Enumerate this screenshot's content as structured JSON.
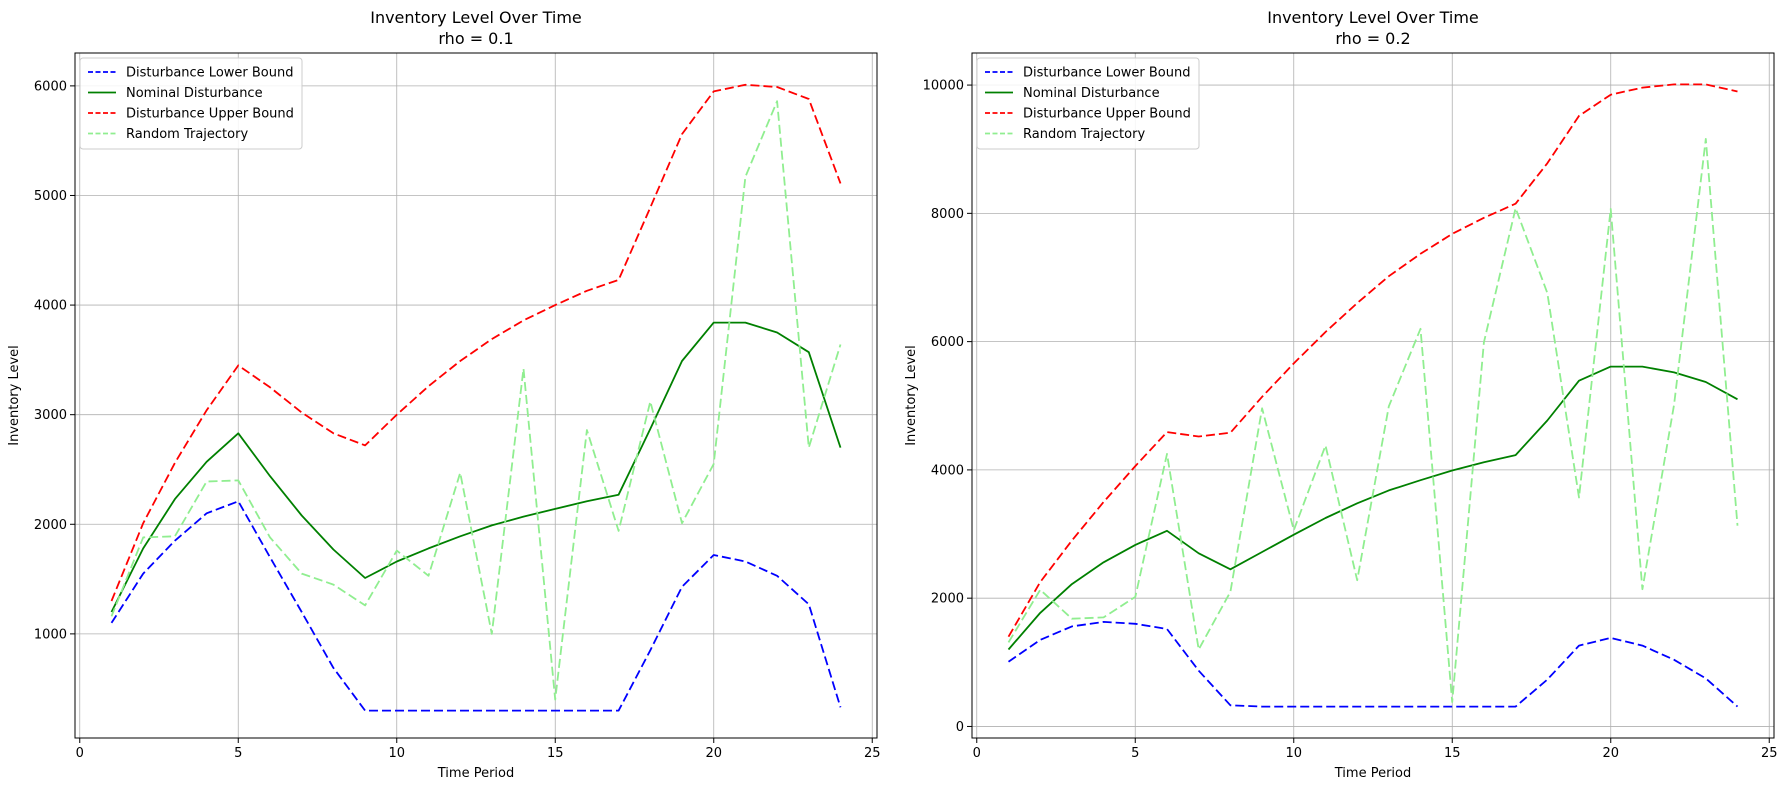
{
  "chart_data": [
    {
      "type": "line",
      "title": "Inventory Level Over Time",
      "subtitle": "rho = 0.1",
      "xlabel": "Time Period",
      "ylabel": "Inventory Level",
      "xlim": [
        -0.15,
        25.15
      ],
      "ylim": [
        50,
        6300
      ],
      "xticks": [
        0,
        5,
        10,
        15,
        20,
        25
      ],
      "yticks": [
        1000,
        2000,
        3000,
        4000,
        5000,
        6000
      ],
      "grid": true,
      "legend_position": "top-left",
      "x": [
        1,
        2,
        3,
        4,
        5,
        6,
        7,
        8,
        9,
        10,
        11,
        12,
        13,
        14,
        15,
        16,
        17,
        18,
        19,
        20,
        21,
        22,
        23,
        24
      ],
      "series": [
        {
          "name": "Disturbance Lower Bound",
          "color": "#0000ff",
          "dash": "dashed",
          "values": [
            1100,
            1550,
            1850,
            2100,
            2210,
            1700,
            1200,
            690,
            300,
            300,
            300,
            300,
            300,
            300,
            300,
            300,
            300,
            850,
            1430,
            1720,
            1660,
            1530,
            1270,
            330
          ]
        },
        {
          "name": "Nominal Disturbance",
          "color": "#008000",
          "dash": "solid",
          "values": [
            1200,
            1780,
            2230,
            2570,
            2830,
            2440,
            2080,
            1770,
            1510,
            1660,
            1780,
            1890,
            1990,
            2070,
            2140,
            2210,
            2270,
            2870,
            3490,
            3840,
            3840,
            3750,
            3570,
            2700
          ]
        },
        {
          "name": "Disturbance Upper Bound",
          "color": "#ff0000",
          "dash": "dashed",
          "values": [
            1300,
            2010,
            2560,
            3040,
            3450,
            3250,
            3020,
            2830,
            2720,
            3000,
            3260,
            3490,
            3690,
            3860,
            4000,
            4130,
            4230,
            4890,
            5560,
            5950,
            6010,
            5990,
            5880,
            5110
          ]
        },
        {
          "name": "Random Trajectory",
          "color": "#90ee90",
          "dash": "dashed",
          "values": [
            1160,
            1880,
            1890,
            2390,
            2400,
            1880,
            1550,
            1450,
            1260,
            1760,
            1530,
            2470,
            1000,
            3420,
            400,
            2860,
            1940,
            3120,
            2010,
            2550,
            5170,
            5860,
            2700,
            3640
          ]
        }
      ]
    },
    {
      "type": "line",
      "title": "Inventory Level Over Time",
      "subtitle": "rho = 0.2",
      "xlabel": "Time Period",
      "ylabel": "Inventory Level",
      "xlim": [
        -0.15,
        25.15
      ],
      "ylim": [
        -180,
        10500
      ],
      "xticks": [
        0,
        5,
        10,
        15,
        20,
        25
      ],
      "yticks": [
        0,
        2000,
        4000,
        6000,
        8000,
        10000
      ],
      "grid": true,
      "legend_position": "top-left",
      "x": [
        1,
        2,
        3,
        4,
        5,
        6,
        7,
        8,
        9,
        10,
        11,
        12,
        13,
        14,
        15,
        16,
        17,
        18,
        19,
        20,
        21,
        22,
        23,
        24
      ],
      "series": [
        {
          "name": "Disturbance Lower Bound",
          "color": "#0000ff",
          "dash": "dashed",
          "values": [
            1010,
            1350,
            1560,
            1630,
            1600,
            1520,
            870,
            330,
            310,
            310,
            310,
            310,
            310,
            310,
            310,
            310,
            310,
            730,
            1260,
            1380,
            1260,
            1040,
            750,
            310
          ]
        },
        {
          "name": "Nominal Disturbance",
          "color": "#008000",
          "dash": "solid",
          "values": [
            1200,
            1770,
            2220,
            2560,
            2830,
            3050,
            2700,
            2450,
            2720,
            2990,
            3250,
            3480,
            3680,
            3840,
            3990,
            4120,
            4230,
            4770,
            5390,
            5610,
            5610,
            5520,
            5370,
            5100
          ]
        },
        {
          "name": "Disturbance Upper Bound",
          "color": "#ff0000",
          "dash": "dashed",
          "values": [
            1400,
            2250,
            2900,
            3500,
            4060,
            4590,
            4520,
            4580,
            5140,
            5660,
            6150,
            6600,
            7020,
            7370,
            7680,
            7930,
            8150,
            8780,
            9520,
            9850,
            9960,
            10010,
            10010,
            9900
          ]
        },
        {
          "name": "Random Trajectory",
          "color": "#90ee90",
          "dash": "dashed",
          "values": [
            1310,
            2130,
            1680,
            1700,
            2020,
            4250,
            1200,
            2100,
            4960,
            3060,
            4380,
            2280,
            4990,
            6200,
            380,
            5990,
            8080,
            6760,
            3570,
            8070,
            2140,
            5020,
            9160,
            3130
          ]
        }
      ]
    }
  ]
}
